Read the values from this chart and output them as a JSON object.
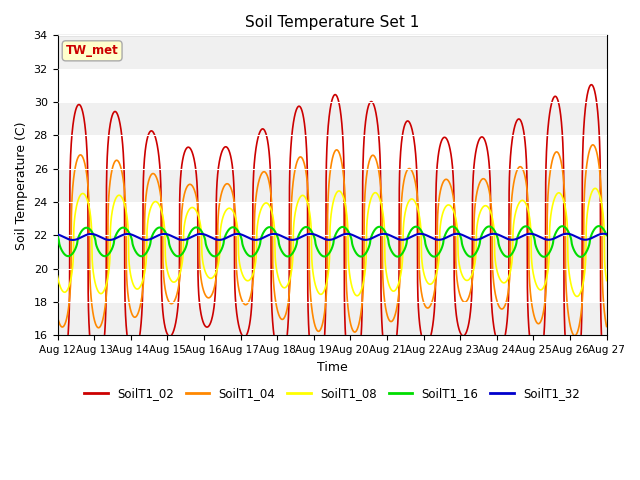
{
  "title": "Soil Temperature Set 1",
  "xlabel": "Time",
  "ylabel": "Soil Temperature (C)",
  "ylim": [
    16,
    34
  ],
  "xlim": [
    0,
    360
  ],
  "background_color": "#ffffff",
  "plot_bg_color": "#e8e8e8",
  "grid_color": "#ffffff",
  "annotation_text": "TW_met",
  "annotation_bg": "#ffffcc",
  "annotation_border": "#aaaaaa",
  "series_colors": {
    "SoilT1_02": "#cc0000",
    "SoilT1_04": "#ff8800",
    "SoilT1_08": "#ffff00",
    "SoilT1_16": "#00dd00",
    "SoilT1_32": "#0000cc"
  },
  "x_tick_labels": [
    "Aug 12",
    "Aug 13",
    "Aug 14",
    "Aug 15",
    "Aug 16",
    "Aug 17",
    "Aug 18",
    "Aug 19",
    "Aug 20",
    "Aug 21",
    "Aug 22",
    "Aug 23",
    "Aug 24",
    "Aug 25",
    "Aug 26",
    "Aug 27"
  ],
  "x_tick_positions": [
    0,
    24,
    48,
    72,
    96,
    120,
    144,
    168,
    192,
    216,
    240,
    264,
    288,
    312,
    336,
    360
  ],
  "hours_per_day": 24,
  "total_hours": 360,
  "yticks": [
    16,
    18,
    20,
    22,
    24,
    26,
    28,
    30,
    32,
    34
  ],
  "band_colors": [
    "#f0f0f0",
    "#ffffff"
  ],
  "band_edges": [
    16,
    18,
    20,
    22,
    24,
    26,
    28,
    30,
    32,
    34
  ]
}
